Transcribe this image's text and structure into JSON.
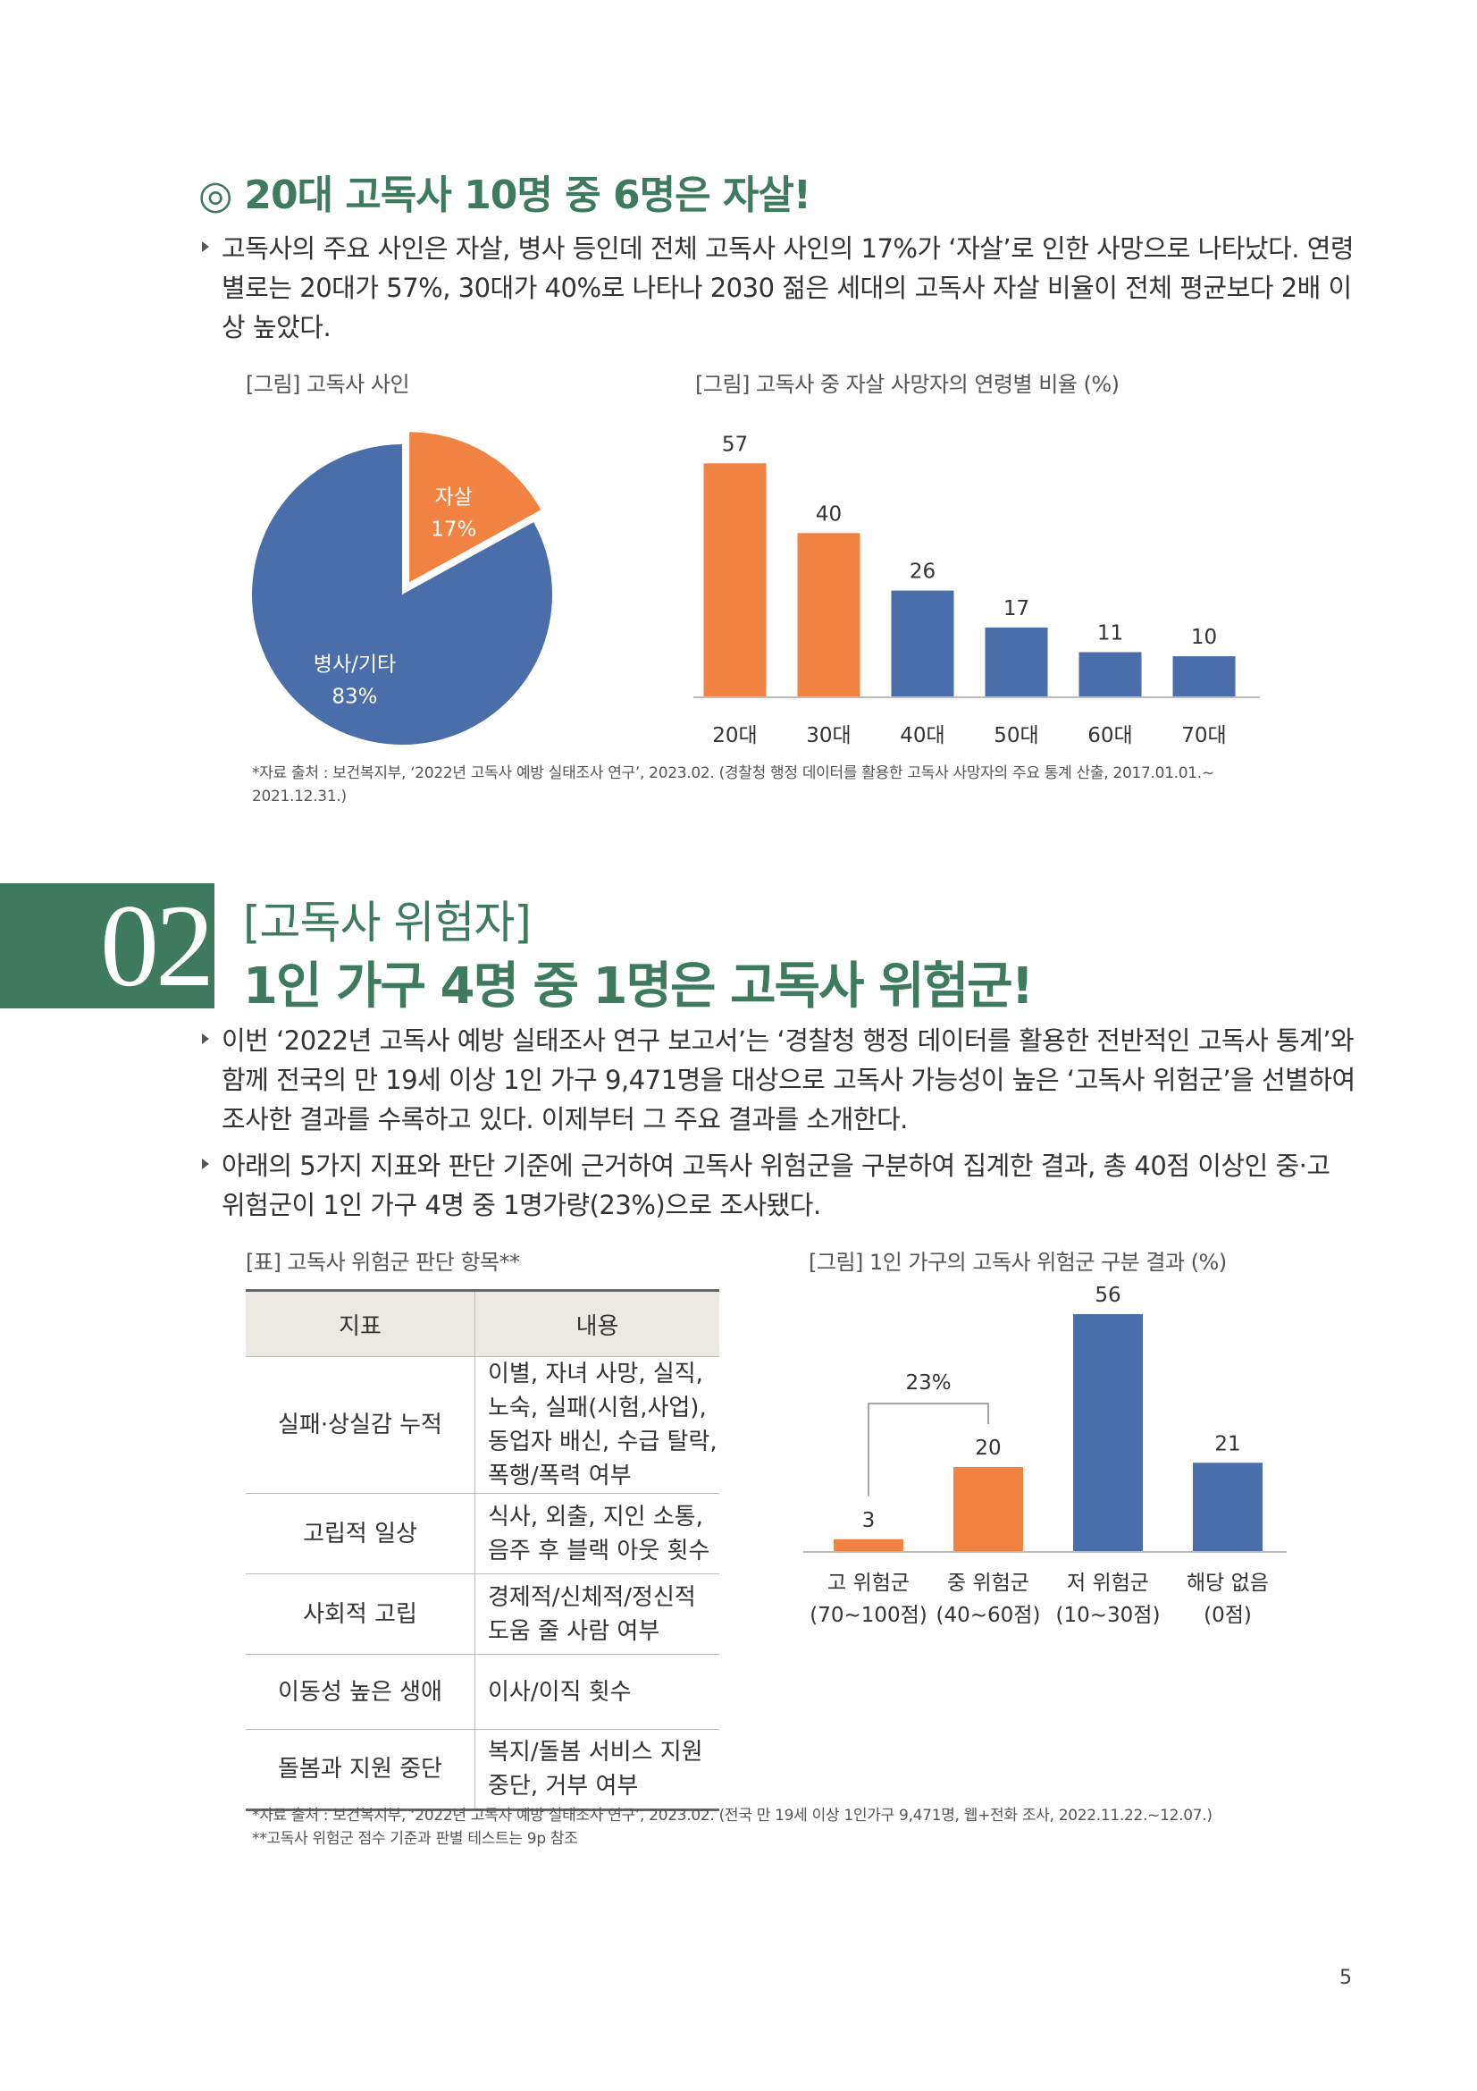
{
  "section1": {
    "mark": "◎",
    "title": "20대 고독사 10명 중 6명은 자살!",
    "paragraph": "고독사의 주요 사인은 자살, 병사 등인데 전체 고독사 사인의 17%가 ‘자살’로 인한 사망으로 나타났다. 연령별로는 20대가 57%, 30대가 40%로 나타나 2030 젊은 세대의 고독사 자살 비율이 전체 평균보다 2배 이상 높았다.",
    "pie_caption": "[그림] 고독사 사인",
    "bar_caption": "[그림] 고독사 중 자살 사망자의 연령별 비율 (%)",
    "source": "*자료 출처 : 보건복지부, ‘2022년 고독사 예방 실태조사 연구’, 2023.02. (경찰청 행정 데이터를 활용한 고독사 사망자의 주요 통계 산출, 2017.01.01.~ 2021.12.31.)"
  },
  "section2": {
    "number": "02",
    "subtitle": "[고독사 위험자]",
    "title": "1인 가구 4명 중 1명은 고독사 위험군!",
    "paragraph1": "이번 ‘2022년 고독사 예방 실태조사 연구 보고서’는 ‘경찰청 행정 데이터를 활용한 전반적인 고독사 통계’와 함께 전국의 만 19세 이상 1인 가구 9,471명을 대상으로 고독사 가능성이 높은 ‘고독사 위험군’을 선별하여 조사한 결과를 수록하고 있다. 이제부터 그 주요 결과를 소개한다.",
    "paragraph2": "아래의 5가지 지표와 판단 기준에 근거하여 고독사 위험군을 구분하여 집계한 결과, 총 40점 이상인 중·고 위험군이 1인 가구 4명 중 1명가량(23%)으로 조사됐다.",
    "table_caption": "[표] 고독사 위험군 판단 항목**",
    "chart_caption": "[그림] 1인 가구의 고독사 위험군 구분 결과 (%)",
    "table": {
      "headers": [
        "지표",
        "내용"
      ],
      "rows": [
        {
          "indicator": "실패·상실감 누적",
          "content": "이별, 자녀 사망, 실직, 노숙, 실패(시험,사업), 동업자 배신, 수급 탈락, 폭행/폭력 여부"
        },
        {
          "indicator": "고립적 일상",
          "content": "식사, 외출, 지인 소통, 음주 후 블랙 아웃 횟수"
        },
        {
          "indicator": "사회적 고립",
          "content": "경제적/신체적/정신적 도움 줄 사람 여부"
        },
        {
          "indicator": "이동성 높은 생애",
          "content": "이사/이직 횟수"
        },
        {
          "indicator": "돌봄과 지원 중단",
          "content": "복지/돌봄 서비스 지원 중단, 거부 여부"
        }
      ]
    },
    "source1": "*자료 출처 : 보건복지부, ‘2022년 고독사 예방 실태조사 연구’, 2023.02. (전국 만 19세 이상 1인가구 9,471명, 웹+전화 조사, 2022.11.22.~12.07.)",
    "source2": "**고독사 위험군 점수 기준과 판별 테스트는 9p 참조"
  },
  "page_number": "5",
  "colors": {
    "green": "#3d7a5e",
    "orange": "#f08242",
    "blue": "#4a6ea9"
  },
  "chart_data": [
    {
      "type": "pie",
      "slices": [
        {
          "label": "자살",
          "value": 17,
          "value_label": "17%",
          "color": "#f08242"
        },
        {
          "label": "병사/기타",
          "value": 83,
          "value_label": "83%",
          "color": "#4a6ea9"
        }
      ]
    },
    {
      "type": "bar",
      "categories": [
        "20대",
        "30대",
        "40대",
        "50대",
        "60대",
        "70대"
      ],
      "values": [
        57,
        40,
        26,
        17,
        11,
        10
      ],
      "colors": [
        "#f08242",
        "#f08242",
        "#4a6ea9",
        "#4a6ea9",
        "#4a6ea9",
        "#4a6ea9"
      ],
      "ylim": [
        0,
        60
      ]
    },
    {
      "type": "bar",
      "categories": [
        "고 위험군",
        "중 위험군",
        "저 위험군",
        "해당 없음"
      ],
      "category_sublabels": [
        "(70~100점)",
        "(40~60점)",
        "(10~30점)",
        "(0점)"
      ],
      "values": [
        3,
        20,
        56,
        21
      ],
      "colors": [
        "#f08242",
        "#f08242",
        "#4a6ea9",
        "#4a6ea9"
      ],
      "bracket_label": "23%",
      "ylim": [
        0,
        60
      ]
    }
  ]
}
